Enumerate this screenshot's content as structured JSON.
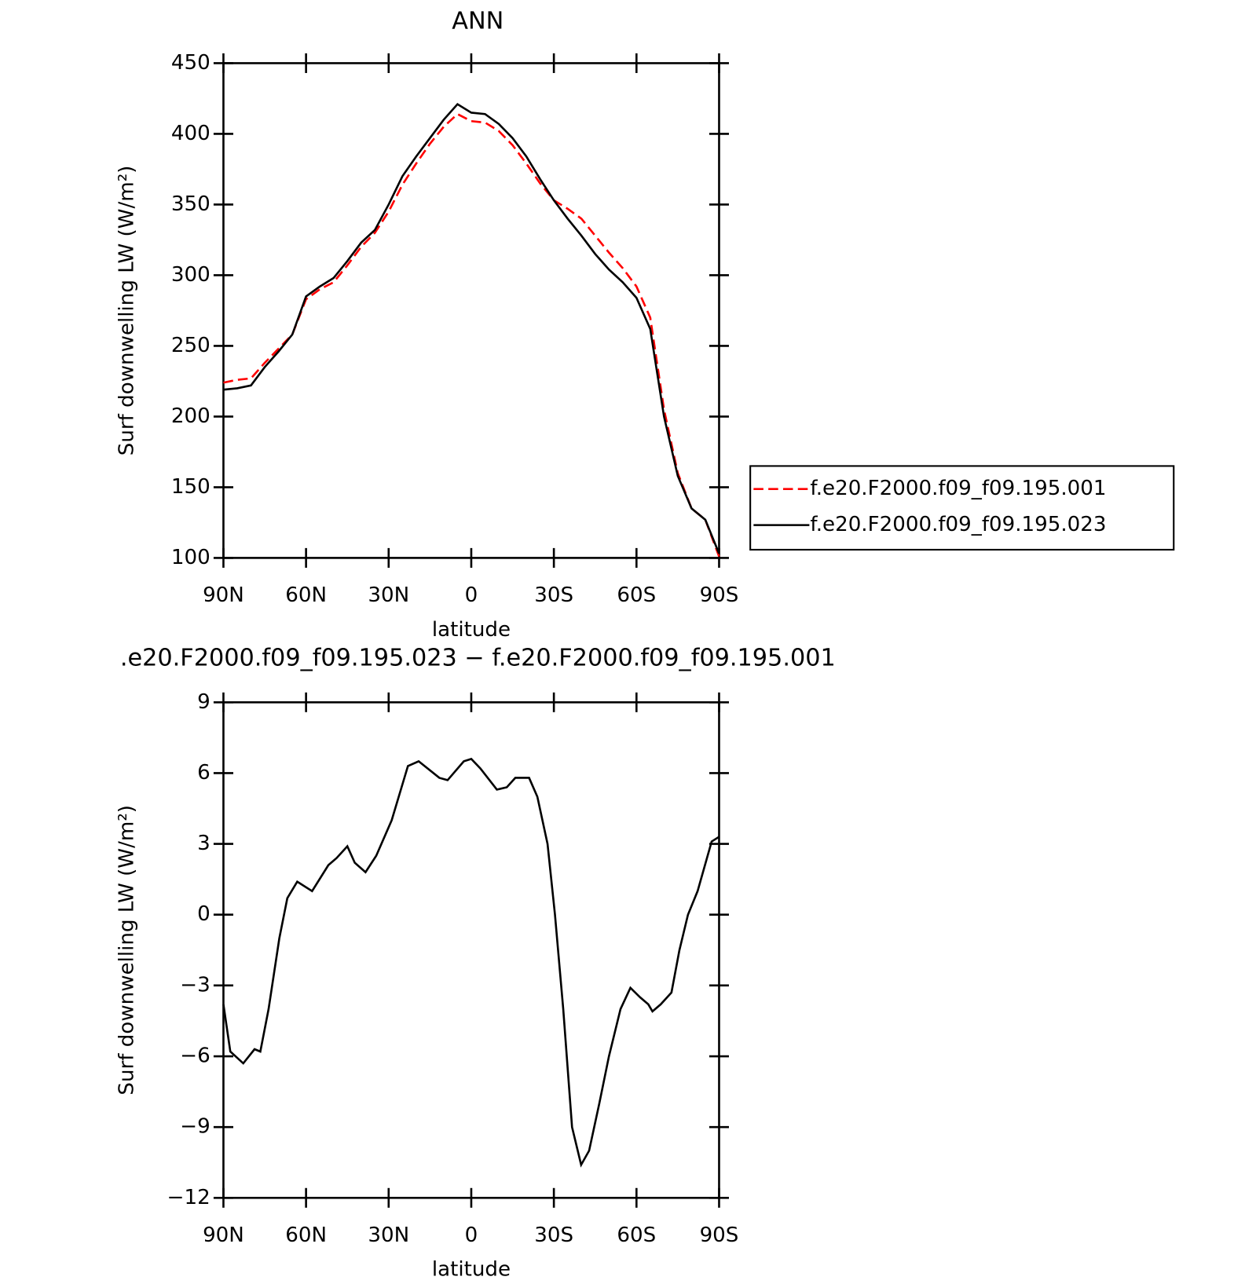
{
  "chart_data": [
    {
      "type": "line",
      "title": "ANN",
      "xlabel": "latitude",
      "ylabel": "Surf downwelling LW (W/m²)",
      "x": [
        90,
        85,
        80,
        75,
        70,
        65,
        60,
        55,
        50,
        45,
        40,
        35,
        30,
        25,
        20,
        15,
        10,
        5,
        0,
        -5,
        -10,
        -15,
        -20,
        -25,
        -30,
        -35,
        -40,
        -45,
        -50,
        -55,
        -60,
        -65,
        -70,
        -75,
        -80,
        -85,
        -90
      ],
      "xlim": [
        90,
        -90
      ],
      "xticks": [
        {
          "value": 90,
          "label": "90N"
        },
        {
          "value": 60,
          "label": "60N"
        },
        {
          "value": 30,
          "label": "30N"
        },
        0,
        {
          "value": -30,
          "label": "30S"
        },
        {
          "value": -60,
          "label": "60S"
        },
        {
          "value": -90,
          "label": "90S"
        }
      ],
      "ylim": [
        100,
        450
      ],
      "yticks": [
        100,
        150,
        200,
        250,
        300,
        350,
        400,
        450
      ],
      "legend": "right",
      "series": [
        {
          "name": "f.e20.F2000.f09_f09.195.001",
          "color": "#ff0000",
          "dash": true,
          "values": [
            224,
            226,
            227,
            238,
            248,
            258,
            283,
            290,
            295,
            307,
            320,
            330,
            345,
            364,
            379,
            393,
            405,
            414,
            409,
            408,
            402,
            392,
            379,
            365,
            353,
            347,
            340,
            328,
            316,
            305,
            292,
            270,
            205,
            160,
            135,
            127,
            101
          ]
        },
        {
          "name": "f.e20.F2000.f09_f09.195.023",
          "color": "#000000",
          "dash": false,
          "values": [
            219,
            220,
            222,
            235,
            246,
            258,
            285,
            292,
            298,
            310,
            323,
            332,
            350,
            370,
            384,
            397,
            410,
            421,
            415,
            414,
            407,
            397,
            384,
            368,
            353,
            340,
            328,
            315,
            304,
            295,
            284,
            262,
            200,
            158,
            135,
            127,
            103
          ]
        }
      ]
    },
    {
      "type": "line",
      "title": ".e20.F2000.f09_f09.195.023 − f.e20.F2000.f09_f09.195.001",
      "xlabel": "latitude",
      "ylabel": "Surf downwelling LW (W/m²)",
      "x": [
        90,
        87.5,
        82.8,
        78.7,
        76.6,
        73.6,
        69.7,
        66.8,
        63.2,
        57.8,
        51.9,
        48.9,
        45,
        42.3,
        38.4,
        34.5,
        28.9,
        23,
        19.1,
        11.6,
        8.6,
        2.7,
        0,
        -3.3,
        -9.3,
        -12.9,
        -16,
        -21,
        -24,
        -27.7,
        -30.4,
        -33.4,
        -36.6,
        -39.9,
        -42.8,
        -46.5,
        -50,
        -54.2,
        -57.8,
        -61.3,
        -64.3,
        -65.8,
        -68.8,
        -72.7,
        -75.6,
        -78.7,
        -82.2,
        -87.3,
        -90
      ],
      "xlim": [
        90,
        -90
      ],
      "xticks": [
        {
          "value": 90,
          "label": "90N"
        },
        {
          "value": 60,
          "label": "60N"
        },
        {
          "value": 30,
          "label": "30N"
        },
        0,
        {
          "value": -30,
          "label": "30S"
        },
        {
          "value": -60,
          "label": "60S"
        },
        {
          "value": -90,
          "label": "90S"
        }
      ],
      "ylim": [
        -12,
        9
      ],
      "yticks": [
        {
          "value": -12,
          "label": "−12"
        },
        {
          "value": -9,
          "label": "−9"
        },
        {
          "value": -6,
          "label": "−6"
        },
        {
          "value": -3,
          "label": "−3"
        },
        0,
        3,
        6,
        9
      ],
      "series": [
        {
          "color": "#000000",
          "dash": false,
          "values": [
            -3.8,
            -5.8,
            -6.3,
            -5.7,
            -5.8,
            -4.0,
            -1.0,
            0.7,
            1.4,
            1.0,
            2.1,
            2.4,
            2.9,
            2.2,
            1.8,
            2.5,
            4.0,
            6.3,
            6.5,
            5.8,
            5.7,
            6.5,
            6.6,
            6.2,
            5.3,
            5.4,
            5.8,
            5.8,
            5.0,
            3.0,
            0.0,
            -4.0,
            -9.0,
            -10.6,
            -10.0,
            -8.0,
            -6.0,
            -4.0,
            -3.1,
            -3.5,
            -3.8,
            -4.1,
            -3.8,
            -3.3,
            -1.5,
            0.0,
            1.0,
            3.1,
            3.3
          ]
        }
      ]
    }
  ]
}
